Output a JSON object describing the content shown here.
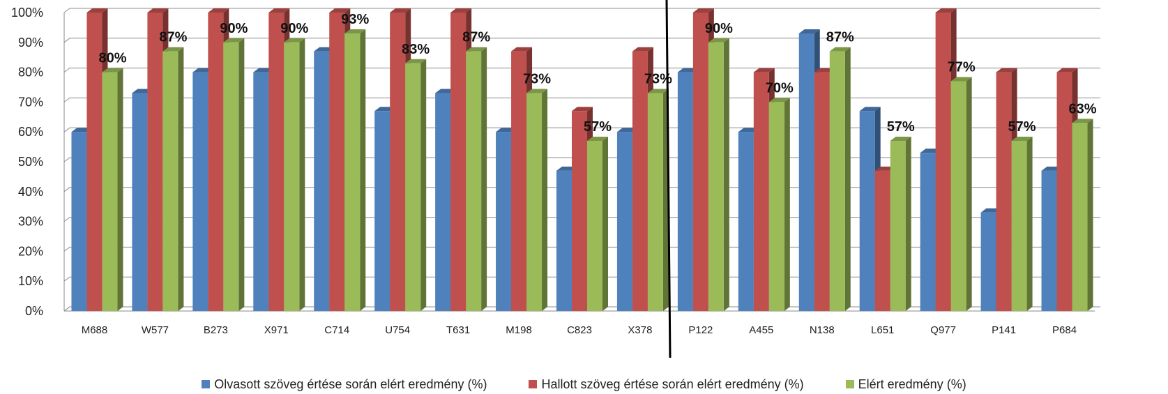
{
  "chart_data": {
    "type": "bar",
    "style": "3d-clustered-column",
    "categories": [
      "M688",
      "W577",
      "B273",
      "X971",
      "C714",
      "U754",
      "T631",
      "M198",
      "C823",
      "X378",
      "P122",
      "A455",
      "N138",
      "L651",
      "Q977",
      "P141",
      "P684"
    ],
    "series": [
      {
        "name": "Olvasott szöveg értése során elért eredmény (%)",
        "color": "#4f81bd",
        "values": [
          60,
          73,
          80,
          80,
          87,
          67,
          73,
          60,
          47,
          60,
          80,
          60,
          93,
          67,
          53,
          33,
          47
        ]
      },
      {
        "name": "Hallott szöveg értése során elért eredmény (%)",
        "color": "#c0504d",
        "values": [
          100,
          100,
          100,
          100,
          100,
          100,
          100,
          87,
          67,
          87,
          100,
          80,
          80,
          47,
          100,
          80,
          80
        ]
      },
      {
        "name": "Elért eredmény (%)",
        "color": "#9bbb59",
        "values": [
          80,
          87,
          90,
          90,
          93,
          83,
          87,
          73,
          57,
          73,
          90,
          70,
          87,
          57,
          77,
          57,
          63
        ],
        "data_labels": [
          "80%",
          "87%",
          "90%",
          "90%",
          "93%",
          "83%",
          "87%",
          "73%",
          "57%",
          "73%",
          "90%",
          "70%",
          "87%",
          "57%",
          "77%",
          "57%",
          "63%"
        ]
      }
    ],
    "y_ticks": [
      "0%",
      "10%",
      "20%",
      "30%",
      "40%",
      "50%",
      "60%",
      "70%",
      "80%",
      "90%",
      "100%"
    ],
    "ylim": [
      0,
      100
    ],
    "grid": true,
    "legend_position": "bottom",
    "title": "",
    "xlabel": "",
    "ylabel": ""
  }
}
